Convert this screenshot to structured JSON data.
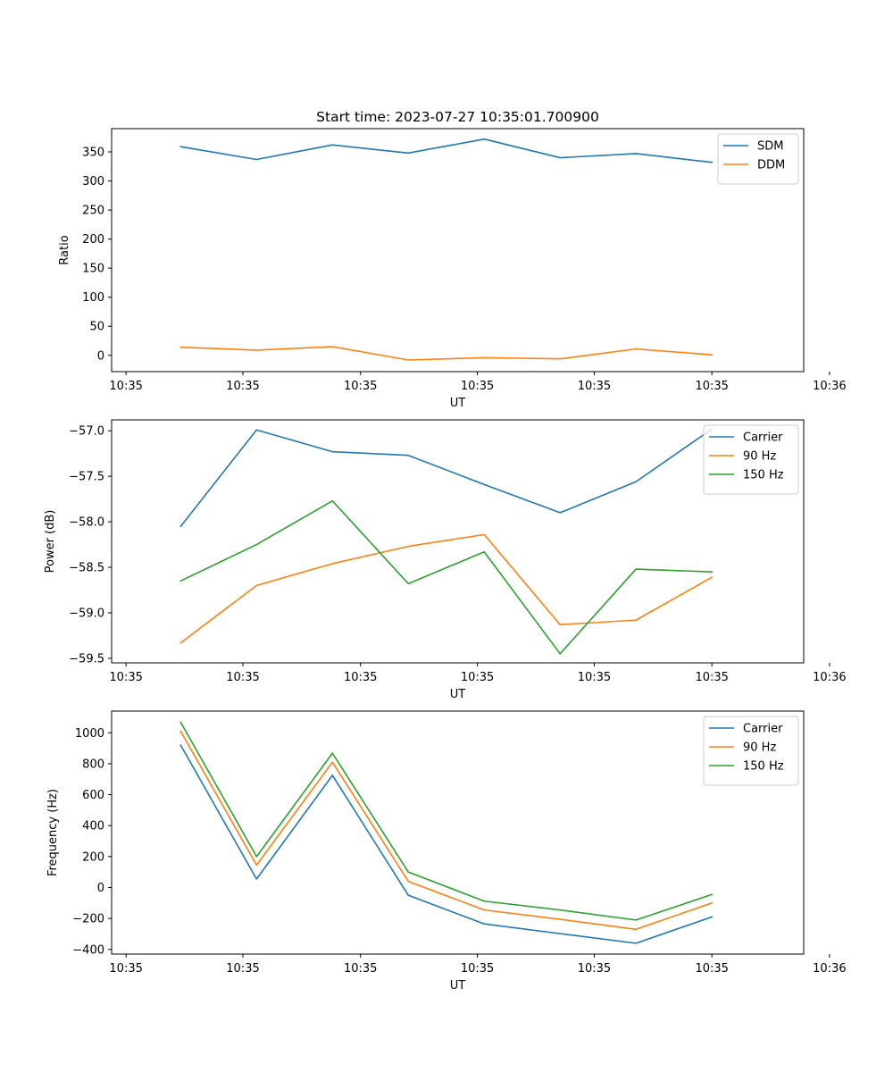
{
  "figure": {
    "title": "Start time: 2023-07-27 10:35:01.700900"
  },
  "colors": {
    "c0": "#1f77b4",
    "c1": "#ff7f0e",
    "c2": "#2ca02c"
  },
  "chart_data": [
    {
      "type": "line",
      "title": "Start time: 2023-07-27 10:35:01.700900",
      "xlabel": "UT",
      "ylabel": "Ratio",
      "x": [
        1,
        2,
        3,
        4,
        5,
        6,
        7,
        8
      ],
      "xlim": [
        0.09,
        9.21
      ],
      "xticks": [
        0.28,
        1.82,
        3.37,
        4.91,
        6.45,
        8.0,
        9.55
      ],
      "xtick_labels": [
        "10:35",
        "10:35",
        "10:35",
        "10:35",
        "10:35",
        "10:35",
        "10:36"
      ],
      "ylim": [
        -28,
        390
      ],
      "yticks": [
        0,
        50,
        100,
        150,
        200,
        250,
        300,
        350
      ],
      "ytick_labels": [
        "0",
        "50",
        "100",
        "150",
        "200",
        "250",
        "300",
        "350"
      ],
      "legend": "top-right",
      "series": [
        {
          "name": "SDM",
          "color": "#1f77b4",
          "values": [
            359,
            337,
            362,
            348,
            372,
            340,
            347,
            332
          ]
        },
        {
          "name": "DDM",
          "color": "#ff7f0e",
          "values": [
            14,
            9,
            15,
            -8,
            -4,
            -6,
            11,
            1
          ]
        }
      ]
    },
    {
      "type": "line",
      "xlabel": "UT",
      "ylabel": "Power (dB)",
      "x": [
        1,
        2,
        3,
        4,
        5,
        6,
        7,
        8
      ],
      "xlim": [
        0.09,
        9.21
      ],
      "xticks": [
        0.28,
        1.82,
        3.37,
        4.91,
        6.45,
        8.0,
        9.55
      ],
      "xtick_labels": [
        "10:35",
        "10:35",
        "10:35",
        "10:35",
        "10:35",
        "10:35",
        "10:36"
      ],
      "ylim": [
        -59.55,
        -56.88
      ],
      "yticks": [
        -59.5,
        -59.0,
        -58.5,
        -58.0,
        -57.5,
        -57.0
      ],
      "ytick_labels": [
        "−59.5",
        "−59.0",
        "−58.5",
        "−58.0",
        "−57.5",
        "−57.0"
      ],
      "legend": "top-right",
      "series": [
        {
          "name": "Carrier",
          "color": "#1f77b4",
          "values": [
            -58.05,
            -56.99,
            -57.23,
            -57.27,
            -57.59,
            -57.9,
            -57.56,
            -56.98
          ]
        },
        {
          "name": "90 Hz",
          "color": "#ff7f0e",
          "values": [
            -59.33,
            -58.7,
            -58.46,
            -58.27,
            -58.14,
            -59.13,
            -59.08,
            -58.61
          ]
        },
        {
          "name": "150 Hz",
          "color": "#2ca02c",
          "values": [
            -58.65,
            -58.25,
            -57.77,
            -58.68,
            -58.33,
            -59.45,
            -58.52,
            -58.55
          ]
        }
      ]
    },
    {
      "type": "line",
      "xlabel": "UT",
      "ylabel": "Frequency (Hz)",
      "x": [
        1,
        2,
        3,
        4,
        5,
        6,
        7,
        8
      ],
      "xlim": [
        0.09,
        9.21
      ],
      "xticks": [
        0.28,
        1.82,
        3.37,
        4.91,
        6.45,
        8.0,
        9.55
      ],
      "xtick_labels": [
        "10:35",
        "10:35",
        "10:35",
        "10:35",
        "10:35",
        "10:35",
        "10:36"
      ],
      "ylim": [
        -430,
        1140
      ],
      "yticks": [
        -400,
        -200,
        0,
        200,
        400,
        600,
        800,
        1000
      ],
      "ytick_labels": [
        "−400",
        "−200",
        "0",
        "200",
        "400",
        "600",
        "800",
        "1000"
      ],
      "legend": "top-right",
      "series": [
        {
          "name": "Carrier",
          "color": "#1f77b4",
          "values": [
            920,
            55,
            725,
            -50,
            -235,
            -298,
            -360,
            -190
          ]
        },
        {
          "name": "90 Hz",
          "color": "#ff7f0e",
          "values": [
            1010,
            145,
            810,
            40,
            -145,
            -205,
            -270,
            -100
          ]
        },
        {
          "name": "150 Hz",
          "color": "#2ca02c",
          "values": [
            1068,
            200,
            868,
            100,
            -88,
            -145,
            -210,
            -45
          ]
        }
      ]
    }
  ]
}
